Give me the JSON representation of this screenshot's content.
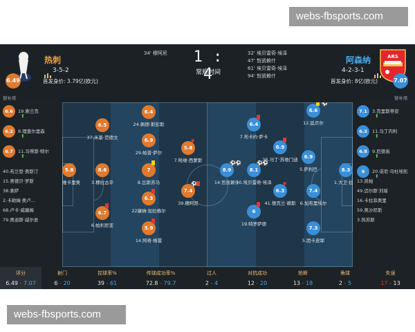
{
  "watermark_top": "webs-fbsports.com",
  "watermark_bottom": "webs-fbsports.com",
  "match": {
    "score": "1 : 4",
    "status": "常规时间",
    "home": {
      "name": "热刺",
      "formation": "3-5-2",
      "value": "首发身价: 3.79亿(欧元)",
      "rating": "6.49",
      "color": "#e07a2e"
    },
    "away": {
      "name": "阿森纳",
      "formation": "4-2-3-1",
      "value": "首发身价: 8亿(欧元)",
      "rating": "7.07",
      "color": "#3a8fd8"
    },
    "home_events": [
      {
        "text": "34' 穆阿尼"
      }
    ],
    "away_events": [
      {
        "text": "32' 埃贝雷奇·埃泽"
      },
      {
        "text": "47' 哲凯赖什"
      },
      {
        "text": "61' 埃贝雷奇·埃泽"
      },
      {
        "text": "94' 哲凯赖什"
      }
    ]
  },
  "bench_label_home": "替补席",
  "bench_label_away": "替补席",
  "players": [
    {
      "id": "gk-vicario",
      "rating": "5.8",
      "label": "1.维卡里奥",
      "side": "home"
    },
    {
      "id": "danso",
      "rating": "8.6",
      "label": "3.穆拉古辛",
      "side": "home"
    },
    {
      "id": "van-de-ven",
      "rating": "6.5",
      "label": "37.米基·范德文",
      "side": "home"
    },
    {
      "id": "palhinha",
      "rating": "6.7",
      "label": "6.帕利尼亚",
      "side": "home"
    },
    {
      "id": "porro",
      "rating": "6.4",
      "label": "24.佩德·斯彭斯",
      "side": "home"
    },
    {
      "id": "sarr",
      "rating": "6.9",
      "label": "29.帕普·萨尔",
      "side": "home"
    },
    {
      "id": "bissouma",
      "rating": "7",
      "label": "8.比斯苏马",
      "side": "home"
    },
    {
      "id": "gallagher",
      "rating": "6.3",
      "label": "22康纳·加拉格尔",
      "side": "home"
    },
    {
      "id": "gray",
      "rating": "5.9",
      "label": "14.阿奇·格雷",
      "side": "home"
    },
    {
      "id": "bergvall",
      "rating": "5.8",
      "label": "7.哈维·西蒙斯",
      "side": "home"
    },
    {
      "id": "kolo-muani",
      "rating": "7.4",
      "label": "39.穆阿尼",
      "side": "home"
    },
    {
      "id": "trossard",
      "rating": "6.4",
      "label": "7.布卡约·萨卡",
      "side": "away"
    },
    {
      "id": "eze",
      "rating": "8.9",
      "label": "14.哲凯赖什",
      "side": "away"
    },
    {
      "id": "odegaard",
      "rating": "8.1",
      "label": "10.埃贝雷奇·埃泽",
      "side": "away"
    },
    {
      "id": "rice",
      "rating": "6.9",
      "label": "36.马丁·苏维门迪",
      "side": "away"
    },
    {
      "id": "merino",
      "rating": "6.9",
      "label": "5.萨利巴",
      "side": "away"
    },
    {
      "id": "saliba",
      "rating": "6.3",
      "label": "41.德克兰·赖斯",
      "side": "away"
    },
    {
      "id": "hincapie",
      "rating": "7.4",
      "label": "6.加布里埃尔",
      "side": "away"
    },
    {
      "id": "timber",
      "rating": "6",
      "label": "19.特罗萨德",
      "side": "away"
    },
    {
      "id": "calafiori",
      "rating": "7.3",
      "label": "5.因卡皮耶",
      "side": "away"
    },
    {
      "id": "white",
      "rating": "6.6",
      "label": "12.廷贝尔",
      "side": "away"
    },
    {
      "id": "gk-raya",
      "rating": "8.3",
      "label": "1.大卫·拉亚",
      "side": "away"
    }
  ],
  "home_bench": [
    {
      "rating": "6.6",
      "label": "19.索兰克"
    },
    {
      "rating": "6.2",
      "label": "8.理查尔里森"
    },
    {
      "rating": "6.7",
      "label": "11.马蒂斯·特尔"
    },
    {
      "rating": "",
      "label": "40.布兰登·奥斯汀"
    },
    {
      "rating": "",
      "label": "15.奥德贝·罗斯"
    },
    {
      "rating": "",
      "label": "38.索萨"
    },
    {
      "rating": "",
      "label": "2.卡勒姆·奥卢..."
    },
    {
      "rating": "",
      "label": "68.卢卡·威廉姆"
    },
    {
      "rating": "",
      "label": "79.奥迪斯·威尔逊"
    }
  ],
  "away_bench": [
    {
      "rating": "7.1",
      "label": "3.克里斯蒂安"
    },
    {
      "rating": "6.3",
      "label": "11.马丁内利"
    },
    {
      "rating": "6.8",
      "label": "9.厄德高"
    },
    {
      "rating": "6",
      "label": "20.诺尼·马杜埃凯"
    },
    {
      "rating": "",
      "label": "13.凯帕"
    },
    {
      "rating": "",
      "label": "49.迈尔斯·刘易"
    },
    {
      "rating": "",
      "label": "16.卡拉菲奥里"
    },
    {
      "rating": "",
      "label": "59.奥沙尼斯"
    },
    {
      "rating": "",
      "label": "3.热苏斯"
    }
  ],
  "stats": [
    {
      "title": "评分",
      "home": "6.49",
      "away": "7.07"
    },
    {
      "title": "射门",
      "home": "6",
      "away": "20"
    },
    {
      "title": "控球率%",
      "home": "39",
      "away": "61"
    },
    {
      "title": "传球成功率%",
      "home": "72.8",
      "away": "79.7"
    },
    {
      "title": "过人",
      "home": "2",
      "away": "4"
    },
    {
      "title": "对抗成功",
      "home": "12",
      "away": "20"
    },
    {
      "title": "抢断",
      "home": "13",
      "away": "18"
    },
    {
      "title": "角球",
      "home": "2",
      "away": "5"
    },
    {
      "title": "失误",
      "home": "17",
      "away": "13"
    }
  ],
  "colors": {
    "home": "#e07a2e",
    "away": "#3a8fd8",
    "home_dark": "#c94f2b",
    "goal_icon": "#ffffff",
    "yellow_card": "#f2d21b",
    "red_card": "#e03a2e",
    "sub_arrow": "#63c26a"
  }
}
